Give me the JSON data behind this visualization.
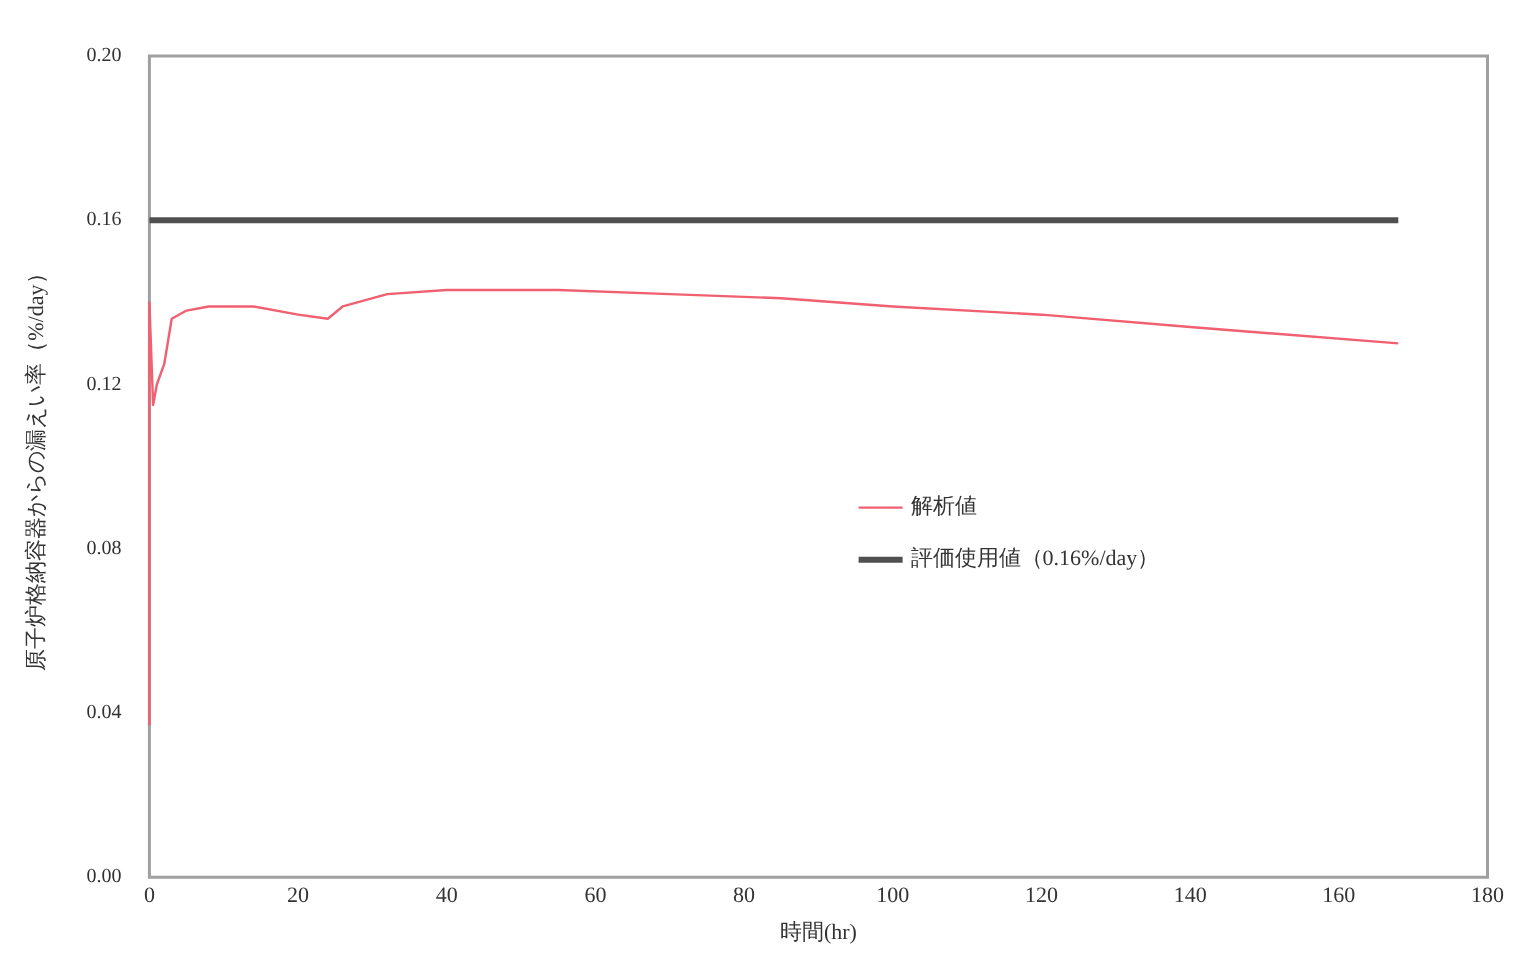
{
  "chart_data": {
    "type": "line",
    "xlabel": "時間(hr)",
    "ylabel": "原子炉格納容器からの漏えい率（%/day）",
    "xlim": [
      0,
      180
    ],
    "xticks": [
      0,
      20,
      40,
      60,
      80,
      100,
      120,
      140,
      160,
      180
    ],
    "ylim": [
      0,
      0.2
    ],
    "yticks": [
      {
        "value": 0,
        "label": "0.00"
      },
      {
        "value": 0.04,
        "label": "0.04"
      },
      {
        "value": 0.08,
        "label": "0.08"
      },
      {
        "value": 0.12,
        "label": "0.12"
      },
      {
        "value": 0.16,
        "label": "0.16"
      },
      {
        "value": 0.2,
        "label": "0.20"
      }
    ],
    "grid": false,
    "legend": "right",
    "marker": "none",
    "line_style": "solid",
    "series": [
      {
        "name": "解析値",
        "color": "#f06070",
        "x": [
          0,
          0,
          0.5,
          1,
          2,
          3,
          5,
          8,
          14,
          20,
          24,
          26,
          32,
          40,
          55,
          70,
          85,
          100,
          120,
          140,
          168
        ],
        "values": [
          0.037,
          0.14,
          0.115,
          0.12,
          0.125,
          0.136,
          0.138,
          0.139,
          0.139,
          0.137,
          0.136,
          0.139,
          0.142,
          0.143,
          0.143,
          0.142,
          0.141,
          0.139,
          0.137,
          0.134,
          0.13
        ]
      },
      {
        "name": "評価使用値（0.16%/day）",
        "color": "#505050",
        "x": [
          0,
          168
        ],
        "values": [
          0.16,
          0.16
        ]
      }
    ]
  }
}
